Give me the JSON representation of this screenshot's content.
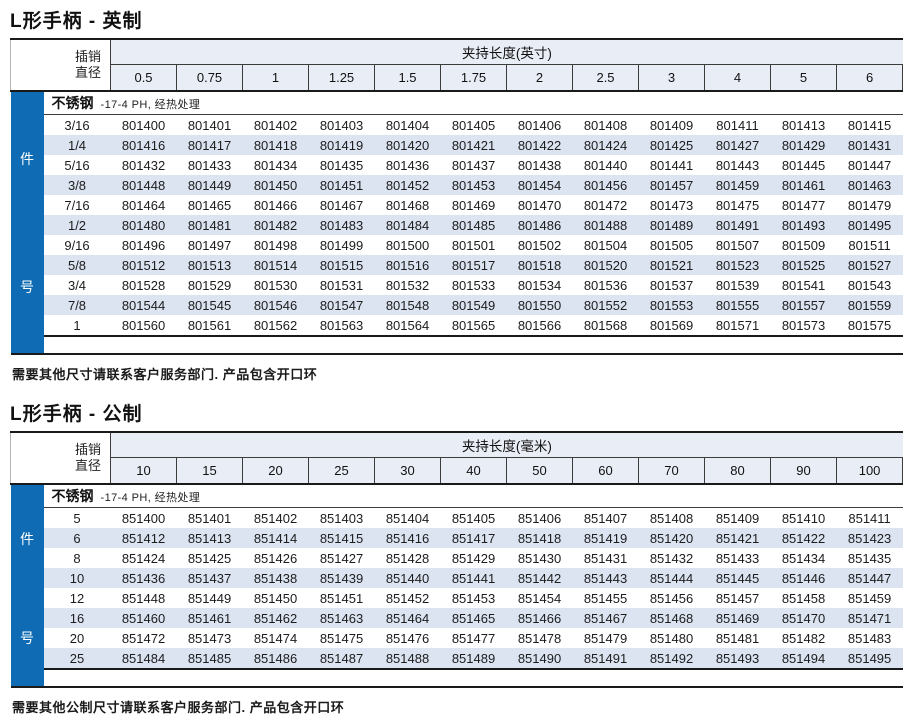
{
  "page": {
    "colors": {
      "accent_blue": "#0e6bb4",
      "row_stripe": "#dce4f2",
      "header_fill": "#e9edf6",
      "border_dark": "#1a1a1a"
    }
  },
  "tables": [
    {
      "title": "L形手柄 - 英制",
      "pin_line1": "插销",
      "pin_line2": "直径",
      "length_header": "夹持长度(英寸)",
      "material": "不锈钢",
      "material_note": "-17-4 PH, 经热处理",
      "side_top": "件",
      "side_bottom": "号",
      "columns": [
        "0.5",
        "0.75",
        "1",
        "1.25",
        "1.5",
        "1.75",
        "2",
        "2.5",
        "3",
        "4",
        "5",
        "6"
      ],
      "rows": [
        {
          "dia": "3/16",
          "parts": [
            "801400",
            "801401",
            "801402",
            "801403",
            "801404",
            "801405",
            "801406",
            "801408",
            "801409",
            "801411",
            "801413",
            "801415"
          ]
        },
        {
          "dia": "1/4",
          "parts": [
            "801416",
            "801417",
            "801418",
            "801419",
            "801420",
            "801421",
            "801422",
            "801424",
            "801425",
            "801427",
            "801429",
            "801431"
          ]
        },
        {
          "dia": "5/16",
          "parts": [
            "801432",
            "801433",
            "801434",
            "801435",
            "801436",
            "801437",
            "801438",
            "801440",
            "801441",
            "801443",
            "801445",
            "801447"
          ]
        },
        {
          "dia": "3/8",
          "parts": [
            "801448",
            "801449",
            "801450",
            "801451",
            "801452",
            "801453",
            "801454",
            "801456",
            "801457",
            "801459",
            "801461",
            "801463"
          ]
        },
        {
          "dia": "7/16",
          "parts": [
            "801464",
            "801465",
            "801466",
            "801467",
            "801468",
            "801469",
            "801470",
            "801472",
            "801473",
            "801475",
            "801477",
            "801479"
          ]
        },
        {
          "dia": "1/2",
          "parts": [
            "801480",
            "801481",
            "801482",
            "801483",
            "801484",
            "801485",
            "801486",
            "801488",
            "801489",
            "801491",
            "801493",
            "801495"
          ]
        },
        {
          "dia": "9/16",
          "parts": [
            "801496",
            "801497",
            "801498",
            "801499",
            "801500",
            "801501",
            "801502",
            "801504",
            "801505",
            "801507",
            "801509",
            "801511"
          ]
        },
        {
          "dia": "5/8",
          "parts": [
            "801512",
            "801513",
            "801514",
            "801515",
            "801516",
            "801517",
            "801518",
            "801520",
            "801521",
            "801523",
            "801525",
            "801527"
          ]
        },
        {
          "dia": "3/4",
          "parts": [
            "801528",
            "801529",
            "801530",
            "801531",
            "801532",
            "801533",
            "801534",
            "801536",
            "801537",
            "801539",
            "801541",
            "801543"
          ]
        },
        {
          "dia": "7/8",
          "parts": [
            "801544",
            "801545",
            "801546",
            "801547",
            "801548",
            "801549",
            "801550",
            "801552",
            "801553",
            "801555",
            "801557",
            "801559"
          ]
        },
        {
          "dia": "1",
          "parts": [
            "801560",
            "801561",
            "801562",
            "801563",
            "801564",
            "801565",
            "801566",
            "801568",
            "801569",
            "801571",
            "801573",
            "801575"
          ]
        }
      ],
      "note": "需要其他尺寸请联系客户服务部门.  产品包含开口环"
    },
    {
      "title": "L形手柄 - 公制",
      "pin_line1": "插销",
      "pin_line2": "直径",
      "length_header": "夹持长度(毫米)",
      "material": "不锈钢",
      "material_note": "-17-4 PH, 经热处理",
      "side_top": "件",
      "side_bottom": "号",
      "columns": [
        "10",
        "15",
        "20",
        "25",
        "30",
        "40",
        "50",
        "60",
        "70",
        "80",
        "90",
        "100"
      ],
      "rows": [
        {
          "dia": "5",
          "parts": [
            "851400",
            "851401",
            "851402",
            "851403",
            "851404",
            "851405",
            "851406",
            "851407",
            "851408",
            "851409",
            "851410",
            "851411"
          ]
        },
        {
          "dia": "6",
          "parts": [
            "851412",
            "851413",
            "851414",
            "851415",
            "851416",
            "851417",
            "851418",
            "851419",
            "851420",
            "851421",
            "851422",
            "851423"
          ]
        },
        {
          "dia": "8",
          "parts": [
            "851424",
            "851425",
            "851426",
            "851427",
            "851428",
            "851429",
            "851430",
            "851431",
            "851432",
            "851433",
            "851434",
            "851435"
          ]
        },
        {
          "dia": "10",
          "parts": [
            "851436",
            "851437",
            "851438",
            "851439",
            "851440",
            "851441",
            "851442",
            "851443",
            "851444",
            "851445",
            "851446",
            "851447"
          ]
        },
        {
          "dia": "12",
          "parts": [
            "851448",
            "851449",
            "851450",
            "851451",
            "851452",
            "851453",
            "851454",
            "851455",
            "851456",
            "851457",
            "851458",
            "851459"
          ]
        },
        {
          "dia": "16",
          "parts": [
            "851460",
            "851461",
            "851462",
            "851463",
            "851464",
            "851465",
            "851466",
            "851467",
            "851468",
            "851469",
            "851470",
            "851471"
          ]
        },
        {
          "dia": "20",
          "parts": [
            "851472",
            "851473",
            "851474",
            "851475",
            "851476",
            "851477",
            "851478",
            "851479",
            "851480",
            "851481",
            "851482",
            "851483"
          ]
        },
        {
          "dia": "25",
          "parts": [
            "851484",
            "851485",
            "851486",
            "851487",
            "851488",
            "851489",
            "851490",
            "851491",
            "851492",
            "851493",
            "851494",
            "851495"
          ]
        }
      ],
      "note": "需要其他公制尺寸请联系客户服务部门.  产品包含开口环"
    }
  ]
}
